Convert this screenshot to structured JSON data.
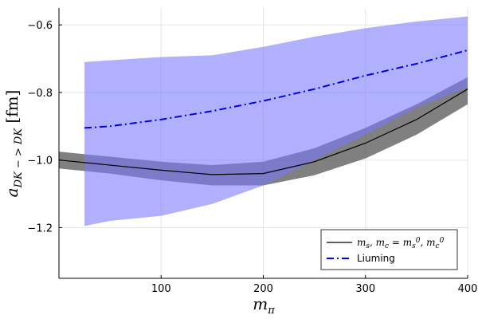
{
  "chart_data": {
    "type": "line",
    "xlabel": "m_π",
    "ylabel": "a_{DK->DK} [fm]",
    "xlim": [
      0,
      400
    ],
    "ylim": [
      -1.35,
      -0.55
    ],
    "xticks": [
      100,
      200,
      300,
      400
    ],
    "yticks": [
      -1.2,
      -1.0,
      -0.8,
      -0.6
    ],
    "xtick_labels": [
      "100",
      "200",
      "300",
      "400"
    ],
    "ytick_labels": [
      "−1.2",
      "−1.0",
      "−0.8",
      "−0.6"
    ],
    "grid": true,
    "legend_position": "bottom-right",
    "series": [
      {
        "name": "m_s, m_c = m_s^0, m_c^0",
        "color": "#000000",
        "style": "solid",
        "x": [
          0,
          50,
          100,
          150,
          200,
          250,
          300,
          350,
          400
        ],
        "y": [
          -1.0,
          -1.015,
          -1.03,
          -1.043,
          -1.04,
          -1.005,
          -0.95,
          -0.88,
          -0.79
        ],
        "band_upper": [
          -0.975,
          -0.99,
          -1.005,
          -1.015,
          -1.005,
          -0.965,
          -0.905,
          -0.835,
          -0.755
        ],
        "band_lower": [
          -1.025,
          -1.04,
          -1.06,
          -1.075,
          -1.075,
          -1.045,
          -0.995,
          -0.925,
          -0.835
        ],
        "band_color": "#555555"
      },
      {
        "name": "Liuming",
        "color": "#0000dd",
        "style": "dashdot",
        "x": [
          25,
          50,
          100,
          150,
          200,
          250,
          300,
          350,
          400
        ],
        "y": [
          -0.905,
          -0.9,
          -0.88,
          -0.855,
          -0.825,
          -0.79,
          -0.75,
          -0.715,
          -0.675
        ],
        "band_upper": [
          -0.71,
          -0.705,
          -0.695,
          -0.69,
          -0.665,
          -0.635,
          -0.61,
          -0.59,
          -0.575
        ],
        "band_lower": [
          -1.195,
          -1.18,
          -1.165,
          -1.13,
          -1.075,
          -1.0,
          -0.925,
          -0.845,
          -0.785
        ],
        "band_color": "#7777ff"
      }
    ]
  }
}
